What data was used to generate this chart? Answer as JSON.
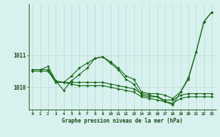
{
  "xlabel": "Graphe pression niveau de la mer (hPa)",
  "ylim": [
    1009.3,
    1012.6
  ],
  "xlim": [
    -0.5,
    23.5
  ],
  "yticks": [
    1010,
    1011
  ],
  "xticks": [
    0,
    1,
    2,
    3,
    4,
    5,
    6,
    7,
    8,
    9,
    10,
    11,
    12,
    13,
    14,
    15,
    16,
    17,
    18,
    19,
    20,
    21,
    22,
    23
  ],
  "bg_color": "#d8f0ee",
  "grid_color": "#b0ddd8",
  "line_color": "#1a6b1a",
  "line1_x": [
    0,
    1,
    2,
    3,
    4,
    5,
    6,
    7,
    8,
    9,
    10,
    11,
    12,
    13,
    14,
    15,
    16,
    17,
    18,
    19,
    20,
    21,
    22,
    23
  ],
  "line1_y": [
    1010.55,
    1010.55,
    1010.65,
    1010.2,
    1010.15,
    1010.35,
    1010.6,
    1010.75,
    1010.9,
    1010.95,
    1010.8,
    1010.6,
    1010.35,
    1010.25,
    1009.85,
    1009.8,
    1009.8,
    1009.75,
    1009.65,
    1009.85,
    1010.3,
    1011.1,
    1012.05,
    1012.35
  ],
  "line2_x": [
    0,
    1,
    2,
    3,
    4,
    5,
    6,
    7,
    8,
    9,
    10,
    11,
    12,
    13,
    14,
    15,
    16,
    17,
    18,
    19,
    20,
    21,
    22,
    23
  ],
  "line2_y": [
    1010.5,
    1010.5,
    1010.5,
    1010.15,
    1010.15,
    1010.15,
    1010.15,
    1010.15,
    1010.15,
    1010.15,
    1010.1,
    1010.05,
    1010.0,
    1009.95,
    1009.8,
    1009.75,
    1009.7,
    1009.6,
    1009.6,
    1009.75,
    1009.8,
    1009.8,
    1009.8,
    1009.8
  ],
  "line3_x": [
    0,
    1,
    2,
    3,
    4,
    5,
    6,
    7,
    8,
    9,
    10,
    11,
    12,
    13,
    14,
    15,
    16,
    17,
    18,
    19,
    20,
    21,
    22,
    23
  ],
  "line3_y": [
    1010.55,
    1010.55,
    1010.55,
    1010.2,
    1009.9,
    1010.2,
    1010.4,
    1010.6,
    1010.9,
    1010.95,
    1010.75,
    1010.55,
    1010.25,
    1010.1,
    1009.75,
    1009.7,
    1009.7,
    1009.55,
    1009.45,
    1009.85,
    1010.25,
    1011.1,
    1012.05,
    1012.35
  ],
  "line4_x": [
    2,
    3,
    4,
    5,
    6,
    7,
    8,
    9,
    10,
    11,
    12,
    13,
    14,
    15,
    16,
    17,
    18,
    19,
    20,
    21,
    22,
    23
  ],
  "line4_y": [
    1010.55,
    1010.15,
    1010.15,
    1010.1,
    1010.05,
    1010.05,
    1010.05,
    1010.05,
    1010.0,
    1009.95,
    1009.9,
    1009.85,
    1009.7,
    1009.65,
    1009.6,
    1009.55,
    1009.5,
    1009.65,
    1009.7,
    1009.7,
    1009.7,
    1009.7
  ]
}
